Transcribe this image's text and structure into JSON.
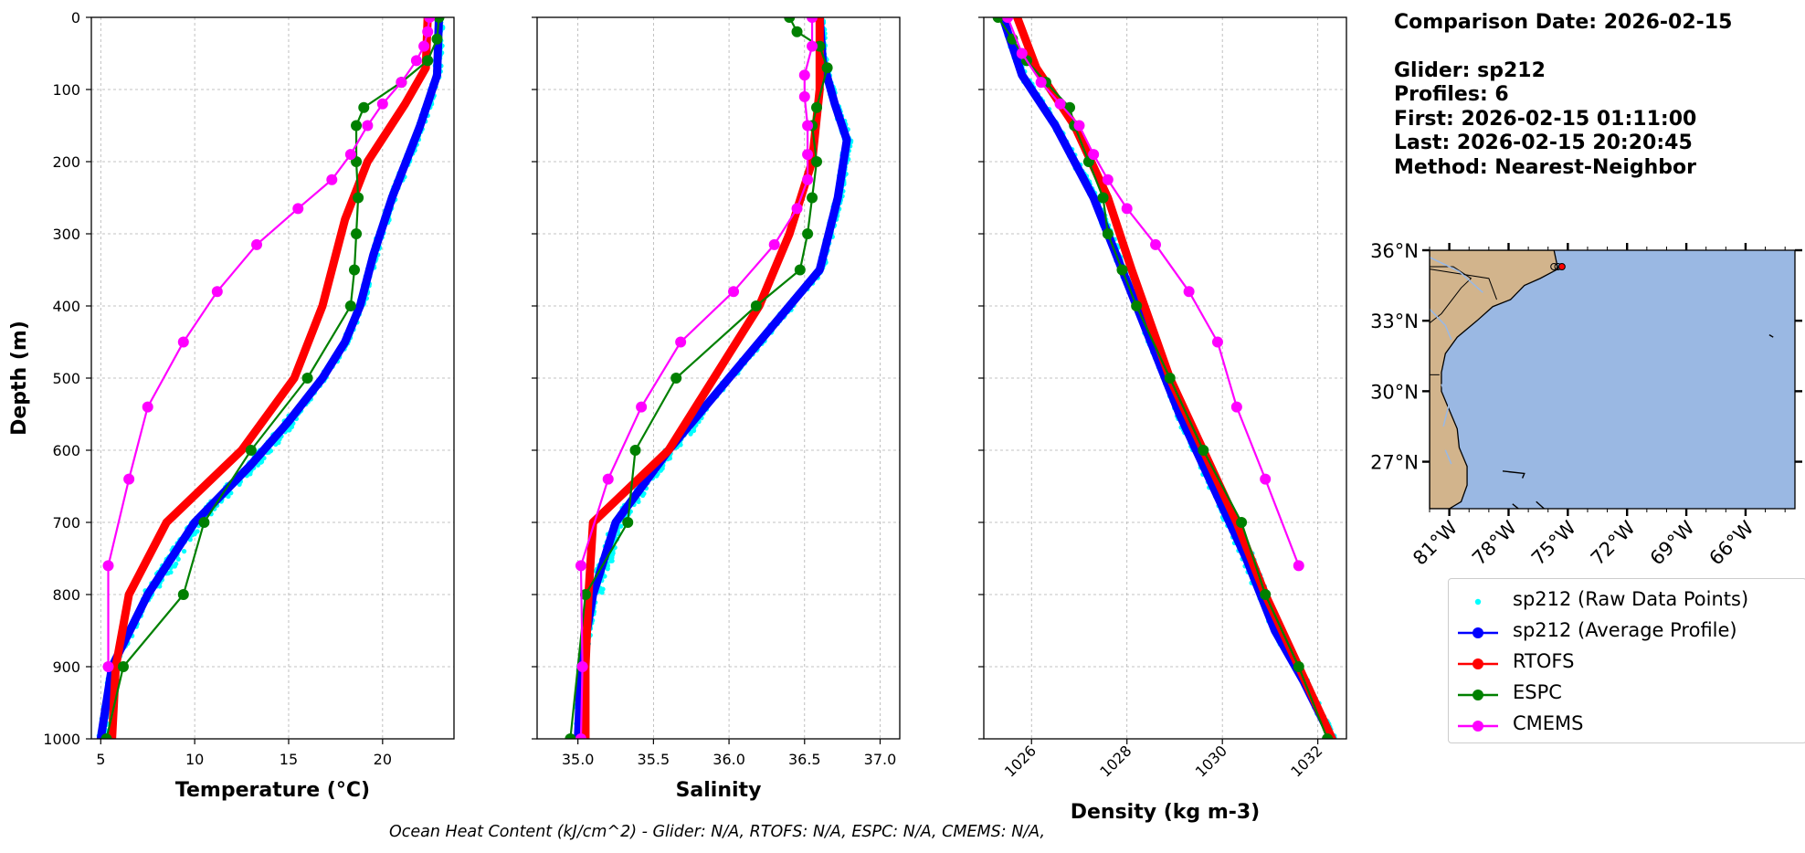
{
  "info": {
    "comparison_date": "Comparison Date: 2026-02-15",
    "glider": "Glider: sp212",
    "profiles": "Profiles: 6",
    "first": "First: 2026-02-15 01:11:00",
    "last": "Last: 2026-02-15 20:20:45",
    "method": "Method: Nearest-Neighbor"
  },
  "footer": "Ocean Heat Content (kJ/cm^2) - Glider: N/A,  RTOFS: N/A,  ESPC: N/A,  CMEMS: N/A,",
  "colors": {
    "raw": "#00ffff",
    "average": "#0000ff",
    "rtofs": "#ff0000",
    "espc": "#008000",
    "cmems": "#ff00ff",
    "land": "#d2b48c",
    "ocean": "#9ab8e3"
  },
  "legend": [
    {
      "label": "sp212 (Raw Data Points)",
      "color": "#00ffff",
      "style": "dot"
    },
    {
      "label": "sp212 (Average Profile)",
      "color": "#0000ff",
      "style": "line-marker"
    },
    {
      "label": "RTOFS",
      "color": "#ff0000",
      "style": "line-marker"
    },
    {
      "label": "ESPC",
      "color": "#008000",
      "style": "line-marker"
    },
    {
      "label": "CMEMS",
      "color": "#ff00ff",
      "style": "line-marker"
    }
  ],
  "chart_data": [
    {
      "type": "line",
      "xlabel": "Temperature (°C)",
      "ylabel": "Depth (m)",
      "xlim": [
        4.5,
        23.8
      ],
      "ylim": [
        1000,
        0
      ],
      "xticks": [
        5,
        10,
        15,
        20
      ],
      "yticks": [
        0,
        100,
        200,
        300,
        400,
        500,
        600,
        700,
        800,
        900,
        1000
      ],
      "grid": true,
      "series": [
        {
          "name": "sp212 (Average Profile)",
          "x": [
            23.0,
            22.9,
            22.0,
            20.5,
            19.5,
            18.8,
            18.0,
            16.8,
            15.0,
            13.0,
            10.0,
            7.5,
            5.6,
            5.0
          ],
          "y": [
            0,
            80,
            150,
            250,
            330,
            400,
            450,
            500,
            560,
            620,
            700,
            800,
            900,
            1000
          ]
        },
        {
          "name": "RTOFS",
          "x": [
            22.4,
            22.3,
            21.2,
            19.2,
            18.0,
            16.8,
            15.3,
            12.5,
            8.5,
            6.5,
            5.8,
            5.6
          ],
          "y": [
            0,
            70,
            120,
            200,
            280,
            400,
            500,
            600,
            700,
            800,
            900,
            1000
          ]
        },
        {
          "name": "ESPC",
          "x": [
            23.0,
            22.9,
            22.4,
            21.0,
            19.0,
            18.6,
            18.6,
            18.7,
            18.6,
            18.5,
            18.3,
            16.0,
            13.0,
            10.5,
            9.4,
            6.2,
            5.3
          ],
          "y": [
            0,
            30,
            60,
            90,
            125,
            150,
            200,
            250,
            300,
            350,
            400,
            500,
            600,
            700,
            800,
            900,
            1000
          ]
        },
        {
          "name": "CMEMS",
          "x": [
            22.5,
            22.4,
            22.2,
            21.8,
            21.0,
            20.0,
            19.2,
            18.3,
            17.3,
            15.5,
            13.3,
            11.2,
            9.4,
            7.5,
            6.5,
            5.4,
            5.4
          ],
          "y": [
            0,
            20,
            40,
            60,
            90,
            120,
            150,
            190,
            225,
            265,
            315,
            380,
            450,
            540,
            640,
            760,
            900
          ]
        }
      ]
    },
    {
      "type": "line",
      "xlabel": "Salinity",
      "xlim": [
        34.73,
        37.13
      ],
      "ylim": [
        1000,
        0
      ],
      "xticks": [
        35.0,
        35.5,
        36.0,
        36.5,
        37.0
      ],
      "yticks": [
        0,
        100,
        200,
        300,
        400,
        500,
        600,
        700,
        800,
        900,
        1000
      ],
      "grid": true,
      "series": [
        {
          "name": "sp212 (Average Profile)",
          "x": [
            36.6,
            36.62,
            36.7,
            36.78,
            36.72,
            36.6,
            36.4,
            36.0,
            35.6,
            35.25,
            35.1,
            35.02,
            35.0
          ],
          "y": [
            0,
            60,
            120,
            170,
            250,
            350,
            400,
            500,
            600,
            700,
            800,
            900,
            1000
          ]
        },
        {
          "name": "RTOFS",
          "x": [
            36.6,
            36.6,
            36.55,
            36.4,
            36.2,
            35.9,
            35.6,
            35.1,
            35.07,
            35.05,
            35.05
          ],
          "y": [
            0,
            100,
            200,
            300,
            400,
            500,
            600,
            700,
            800,
            900,
            1000
          ]
        },
        {
          "name": "ESPC",
          "x": [
            36.4,
            36.45,
            36.6,
            36.65,
            36.58,
            36.55,
            36.58,
            36.55,
            36.52,
            36.47,
            36.18,
            35.65,
            35.38,
            35.33,
            35.05,
            34.95
          ],
          "y": [
            0,
            20,
            40,
            70,
            125,
            150,
            200,
            250,
            300,
            350,
            400,
            500,
            600,
            700,
            800,
            1000
          ]
        },
        {
          "name": "CMEMS",
          "x": [
            36.55,
            36.55,
            36.5,
            36.5,
            36.52,
            36.52,
            36.52,
            36.45,
            36.3,
            36.03,
            35.68,
            35.42,
            35.2,
            35.02,
            35.03,
            35.02
          ],
          "y": [
            0,
            40,
            80,
            110,
            150,
            190,
            225,
            265,
            315,
            380,
            450,
            540,
            640,
            760,
            900,
            1000
          ]
        }
      ]
    },
    {
      "type": "line",
      "xlabel": "Density (kg m-3)",
      "xlim": [
        1025.0,
        1032.6
      ],
      "ylim": [
        1000,
        0
      ],
      "xticks": [
        1026,
        1028,
        1030,
        1032
      ],
      "yticks": [
        0,
        100,
        200,
        300,
        400,
        500,
        600,
        700,
        800,
        900,
        1000
      ],
      "grid": true,
      "series": [
        {
          "name": "sp212 (Average Profile)",
          "x": [
            1025.4,
            1025.8,
            1026.5,
            1027.3,
            1027.9,
            1028.5,
            1029.1,
            1029.8,
            1030.5,
            1031.1,
            1031.7,
            1032.3
          ],
          "y": [
            0,
            80,
            150,
            250,
            350,
            450,
            550,
            650,
            750,
            850,
            920,
            1000
          ]
        },
        {
          "name": "RTOFS",
          "x": [
            1025.7,
            1026.1,
            1026.9,
            1027.6,
            1028.1,
            1028.9,
            1029.6,
            1030.3,
            1030.9,
            1031.6,
            1032.3
          ],
          "y": [
            0,
            70,
            150,
            250,
            350,
            500,
            600,
            700,
            800,
            900,
            1000
          ]
        },
        {
          "name": "ESPC",
          "x": [
            1025.3,
            1025.6,
            1025.9,
            1026.3,
            1026.8,
            1026.9,
            1027.2,
            1027.5,
            1027.6,
            1027.9,
            1028.2,
            1028.9,
            1029.6,
            1030.4,
            1030.9,
            1031.6,
            1032.2
          ],
          "y": [
            0,
            30,
            60,
            90,
            125,
            150,
            200,
            250,
            300,
            350,
            400,
            500,
            600,
            700,
            800,
            900,
            1000
          ]
        },
        {
          "name": "CMEMS",
          "x": [
            1025.5,
            1025.8,
            1026.2,
            1026.6,
            1027.0,
            1027.3,
            1027.6,
            1028.0,
            1028.6,
            1029.3,
            1029.9,
            1030.3,
            1030.9,
            1031.6
          ],
          "y": [
            0,
            50,
            90,
            120,
            150,
            190,
            225,
            265,
            315,
            380,
            450,
            540,
            640,
            760
          ]
        }
      ]
    }
  ],
  "map": {
    "lat_ticks": [
      "36°N",
      "33°N",
      "30°N",
      "27°N"
    ],
    "lon_ticks": [
      "81°W",
      "78°W",
      "75°W",
      "72°W",
      "69°W",
      "66°W"
    ],
    "extent": {
      "lon": [
        -82.0,
        -63.5
      ],
      "lat": [
        25.0,
        36.0
      ]
    },
    "glider_lon": [
      -75.7,
      -75.5,
      -75.3
    ],
    "glider_lat": [
      35.3,
      35.3,
      35.3
    ]
  }
}
